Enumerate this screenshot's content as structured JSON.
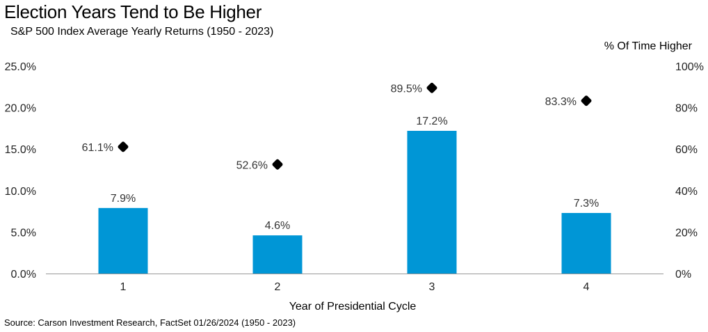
{
  "title": "Election Years Tend to Be Higher",
  "subtitle": "S&P 500 Index Average Yearly Returns (1950 - 2023)",
  "source": "Source: Carson Investment Research, FactSet 01/26/2024 (1950 - 2023)",
  "colors": {
    "bar": "#0096d6",
    "marker": "#000000",
    "axis": "#999999"
  },
  "chart_data": {
    "type": "bar",
    "xlabel": "Year of Presidential Cycle",
    "categories": [
      "1",
      "2",
      "3",
      "4"
    ],
    "series": [
      {
        "type": "bar",
        "axis": "left",
        "values": [
          7.9,
          4.6,
          17.2,
          7.3
        ],
        "labels": [
          "7.9%",
          "4.6%",
          "17.2%",
          "7.3%"
        ]
      },
      {
        "type": "scatter",
        "axis": "right",
        "name": "% Of Time Higher",
        "values": [
          61.1,
          52.6,
          89.5,
          83.3
        ],
        "labels": [
          "61.1%",
          "52.6%",
          "89.5%",
          "83.3%"
        ]
      }
    ],
    "ylim": [
      0,
      25
    ],
    "yticks": [
      "0.0%",
      "5.0%",
      "10.0%",
      "15.0%",
      "20.0%",
      "25.0%"
    ],
    "y2label": "% Of Time Higher",
    "y2lim": [
      0,
      100
    ],
    "y2ticks": [
      "0%",
      "20%",
      "40%",
      "60%",
      "80%",
      "100%"
    ],
    "grid": false
  }
}
